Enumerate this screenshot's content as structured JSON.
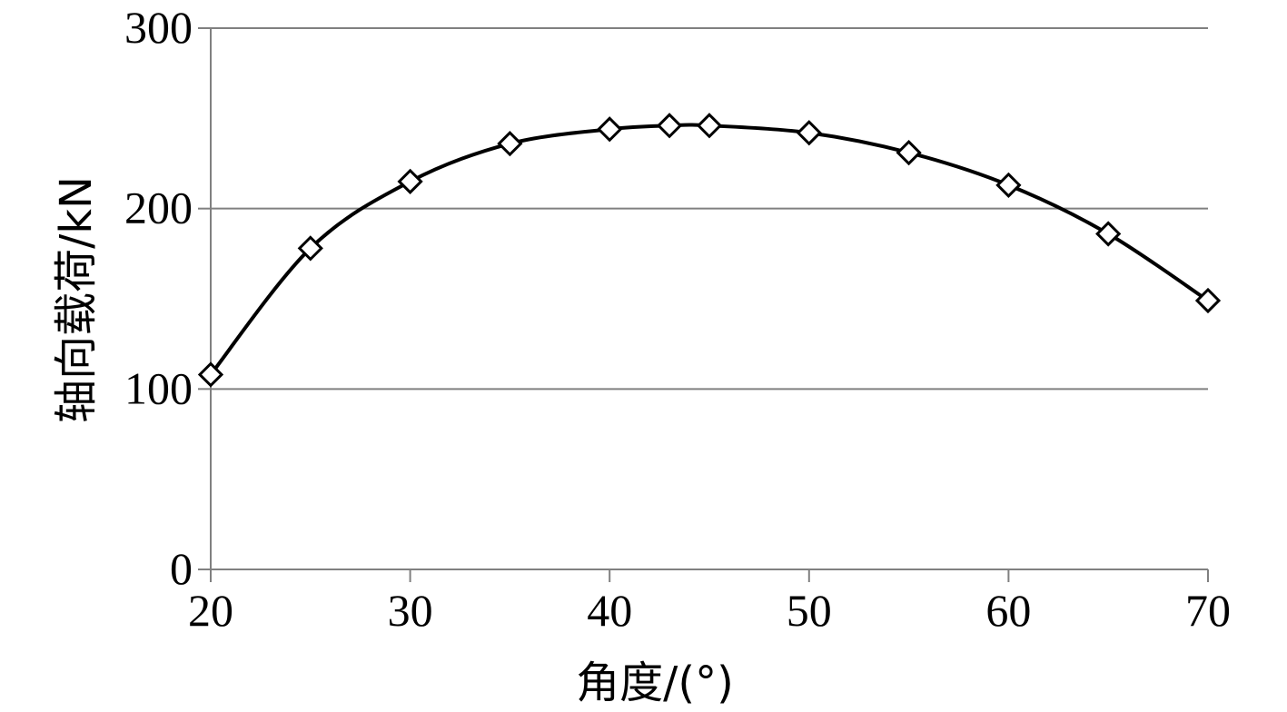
{
  "chart_data": {
    "type": "line",
    "title": "",
    "xlabel": "角度/(°)",
    "ylabel": "轴向载荷/kN",
    "xlim": [
      20,
      70
    ],
    "ylim": [
      0,
      300
    ],
    "x_ticks": [
      20,
      30,
      40,
      50,
      60,
      70
    ],
    "y_ticks": [
      0,
      100,
      200,
      300
    ],
    "grid": {
      "horizontal": true,
      "vertical": false
    },
    "legend": "none",
    "marker": "diamond-open",
    "line_color": "#000000",
    "series": [
      {
        "x": [
          20,
          25,
          30,
          35,
          40,
          43,
          45,
          50,
          55,
          60,
          65,
          70
        ],
        "y": [
          108,
          178,
          215,
          236,
          244,
          246,
          246,
          242,
          231,
          213,
          186,
          149
        ]
      }
    ]
  }
}
